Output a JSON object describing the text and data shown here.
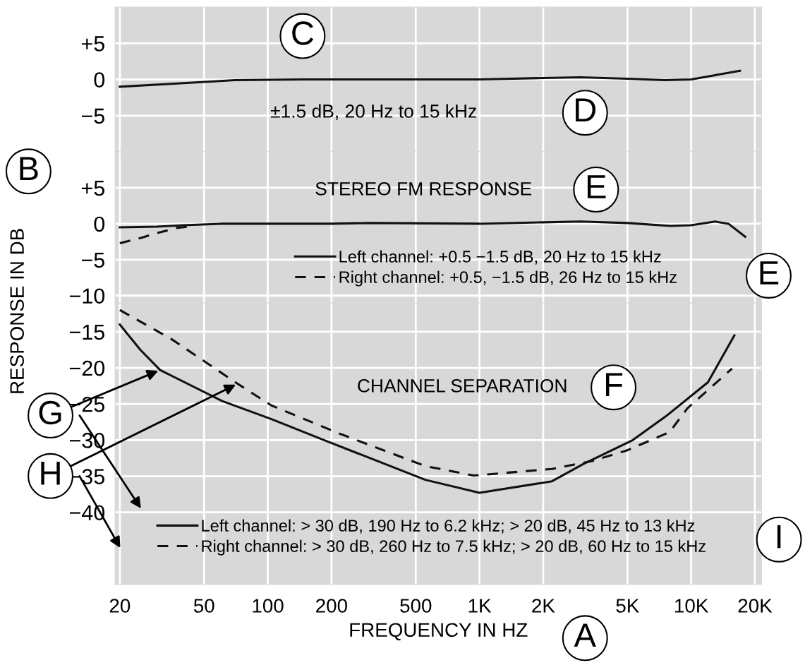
{
  "chart_data": [
    {
      "type": "line",
      "log": "x",
      "grid": true,
      "tick_labels": "y",
      "xlim": [
        19,
        21500
      ],
      "ylim": [
        -10,
        10
      ],
      "xticks": [
        {
          "value": 20,
          "label": null
        },
        {
          "value": 50,
          "label": null
        },
        {
          "value": 100,
          "label": null
        },
        {
          "value": 200,
          "label": null
        },
        {
          "value": 500,
          "label": null
        },
        {
          "value": 1000,
          "label": null
        },
        {
          "value": 2000,
          "label": null
        },
        {
          "value": 5000,
          "label": null
        },
        {
          "value": 10000,
          "label": null
        },
        {
          "value": 20000,
          "label": null
        }
      ],
      "yticks": [
        {
          "value": 5,
          "label": "+5"
        },
        0,
        {
          "value": -5,
          "label": "−5"
        }
      ],
      "series": [
        {
          "color": "#111111",
          "line_style": "solid",
          "x": [
            20,
            40,
            70,
            150,
            500,
            1000,
            2000,
            3000,
            5000,
            7500,
            10000,
            13000,
            17000
          ],
          "values": [
            -1.0,
            -0.5,
            -0.1,
            0,
            0,
            0,
            0.2,
            0.3,
            0.1,
            -0.1,
            0,
            0.6,
            1.2
          ]
        }
      ],
      "annotations": [
        "C",
        "±1.5 dB, 20 Hz to 15 kHz",
        "D"
      ]
    },
    {
      "type": "line",
      "log": "x",
      "grid": true,
      "tick_labels": "y",
      "xlim": [
        19,
        21500
      ],
      "ylim": [
        -11,
        10
      ],
      "legend": "bottom right",
      "xticks": [
        {
          "value": 20,
          "label": null
        },
        {
          "value": 50,
          "label": null
        },
        {
          "value": 100,
          "label": null
        },
        {
          "value": 200,
          "label": null
        },
        {
          "value": 500,
          "label": null
        },
        {
          "value": 1000,
          "label": null
        },
        {
          "value": 2000,
          "label": null
        },
        {
          "value": 5000,
          "label": null
        },
        {
          "value": 10000,
          "label": null
        },
        {
          "value": 20000,
          "label": null
        }
      ],
      "yticks": [
        {
          "value": 5,
          "label": "+5"
        },
        0,
        {
          "value": -5,
          "label": "−5"
        },
        {
          "value": -10,
          "label": "−10"
        }
      ],
      "series": [
        {
          "name": "Left channel: +0.5 −1.5 dB, 20 Hz to 15 kHz",
          "color": "#111111",
          "line_style": "solid",
          "x": [
            20,
            30,
            40,
            60,
            200,
            300,
            1000,
            2000,
            3000,
            5000,
            8000,
            10000,
            13000,
            15000,
            18000
          ],
          "values": [
            -0.5,
            -0.4,
            -0.2,
            0,
            0,
            0.1,
            0,
            0.2,
            0.3,
            0.1,
            -0.3,
            -0.2,
            0.3,
            0,
            -1.8
          ]
        },
        {
          "name": "Right channel: +0.5, −1.5 dB, 26 Hz to 15 kHz",
          "color": "#111111",
          "line_style": "dashed",
          "x": [
            20,
            25,
            30,
            37,
            45
          ],
          "values": [
            -2.7,
            -2.0,
            -1.3,
            -0.6,
            -0.3
          ]
        }
      ],
      "annotations": [
        "B",
        "STEREO FM RESPONSE",
        "E",
        "E"
      ]
    },
    {
      "type": "line",
      "log": "x",
      "grid": true,
      "xlim": [
        19,
        21500
      ],
      "ylim": [
        -50,
        -11
      ],
      "legend": "bottom",
      "xlabel": "FREQUENCY IN HZ",
      "ylabel": "RESPONSE IN DB",
      "xticks": [
        20,
        50,
        100,
        200,
        500,
        {
          "value": 1000,
          "label": "1K"
        },
        {
          "value": 2000,
          "label": "2K"
        },
        {
          "value": 5000,
          "label": "5K"
        },
        {
          "value": 10000,
          "label": "10K"
        },
        {
          "value": 20000,
          "label": "20K"
        }
      ],
      "yticks": [
        {
          "value": -15,
          "label": "−15"
        },
        {
          "value": -20,
          "label": "−20"
        },
        {
          "value": -25,
          "label": "−25"
        },
        {
          "value": -30,
          "label": "−30"
        },
        {
          "value": -35,
          "label": "−35"
        },
        {
          "value": -40,
          "label": "−40"
        }
      ],
      "series": [
        {
          "name": "Left channel: > 30 dB, 190 Hz to 6.2 kHz; > 20 dB, 45 Hz to 13 kHz",
          "color": "#111111",
          "line_style": "solid",
          "x": [
            20,
            25,
            31,
            61,
            104,
            188,
            555,
            1000,
            2200,
            3100,
            5300,
            7600,
            12000,
            16000
          ],
          "values": [
            -14,
            -17.5,
            -20.3,
            -24.6,
            -27.1,
            -30.1,
            -35.5,
            -37.3,
            -35.7,
            -33.3,
            -30,
            -26.7,
            -22,
            -15.5
          ]
        },
        {
          "name": "Right channel: > 30 dB, 260 Hz to 7.5 kHz; > 20 dB, 60 Hz to 15 kHz",
          "color": "#111111",
          "line_style": "dashed",
          "x": [
            20,
            35,
            72,
            104,
            218,
            555,
            940,
            2200,
            3400,
            5000,
            7900,
            9600,
            15600
          ],
          "values": [
            -12,
            -16,
            -22.2,
            -25.2,
            -29.1,
            -33.6,
            -34.9,
            -34,
            -32.9,
            -31.4,
            -28.9,
            -25.6,
            -20.1
          ]
        }
      ],
      "annotations": [
        "CHANNEL SEPARATION",
        "F",
        {
          "text": "G",
          "x": 31,
          "y": -20.3
        },
        {
          "text": "H",
          "x": 72,
          "y": -22.2
        },
        "I",
        "A"
      ]
    }
  ]
}
